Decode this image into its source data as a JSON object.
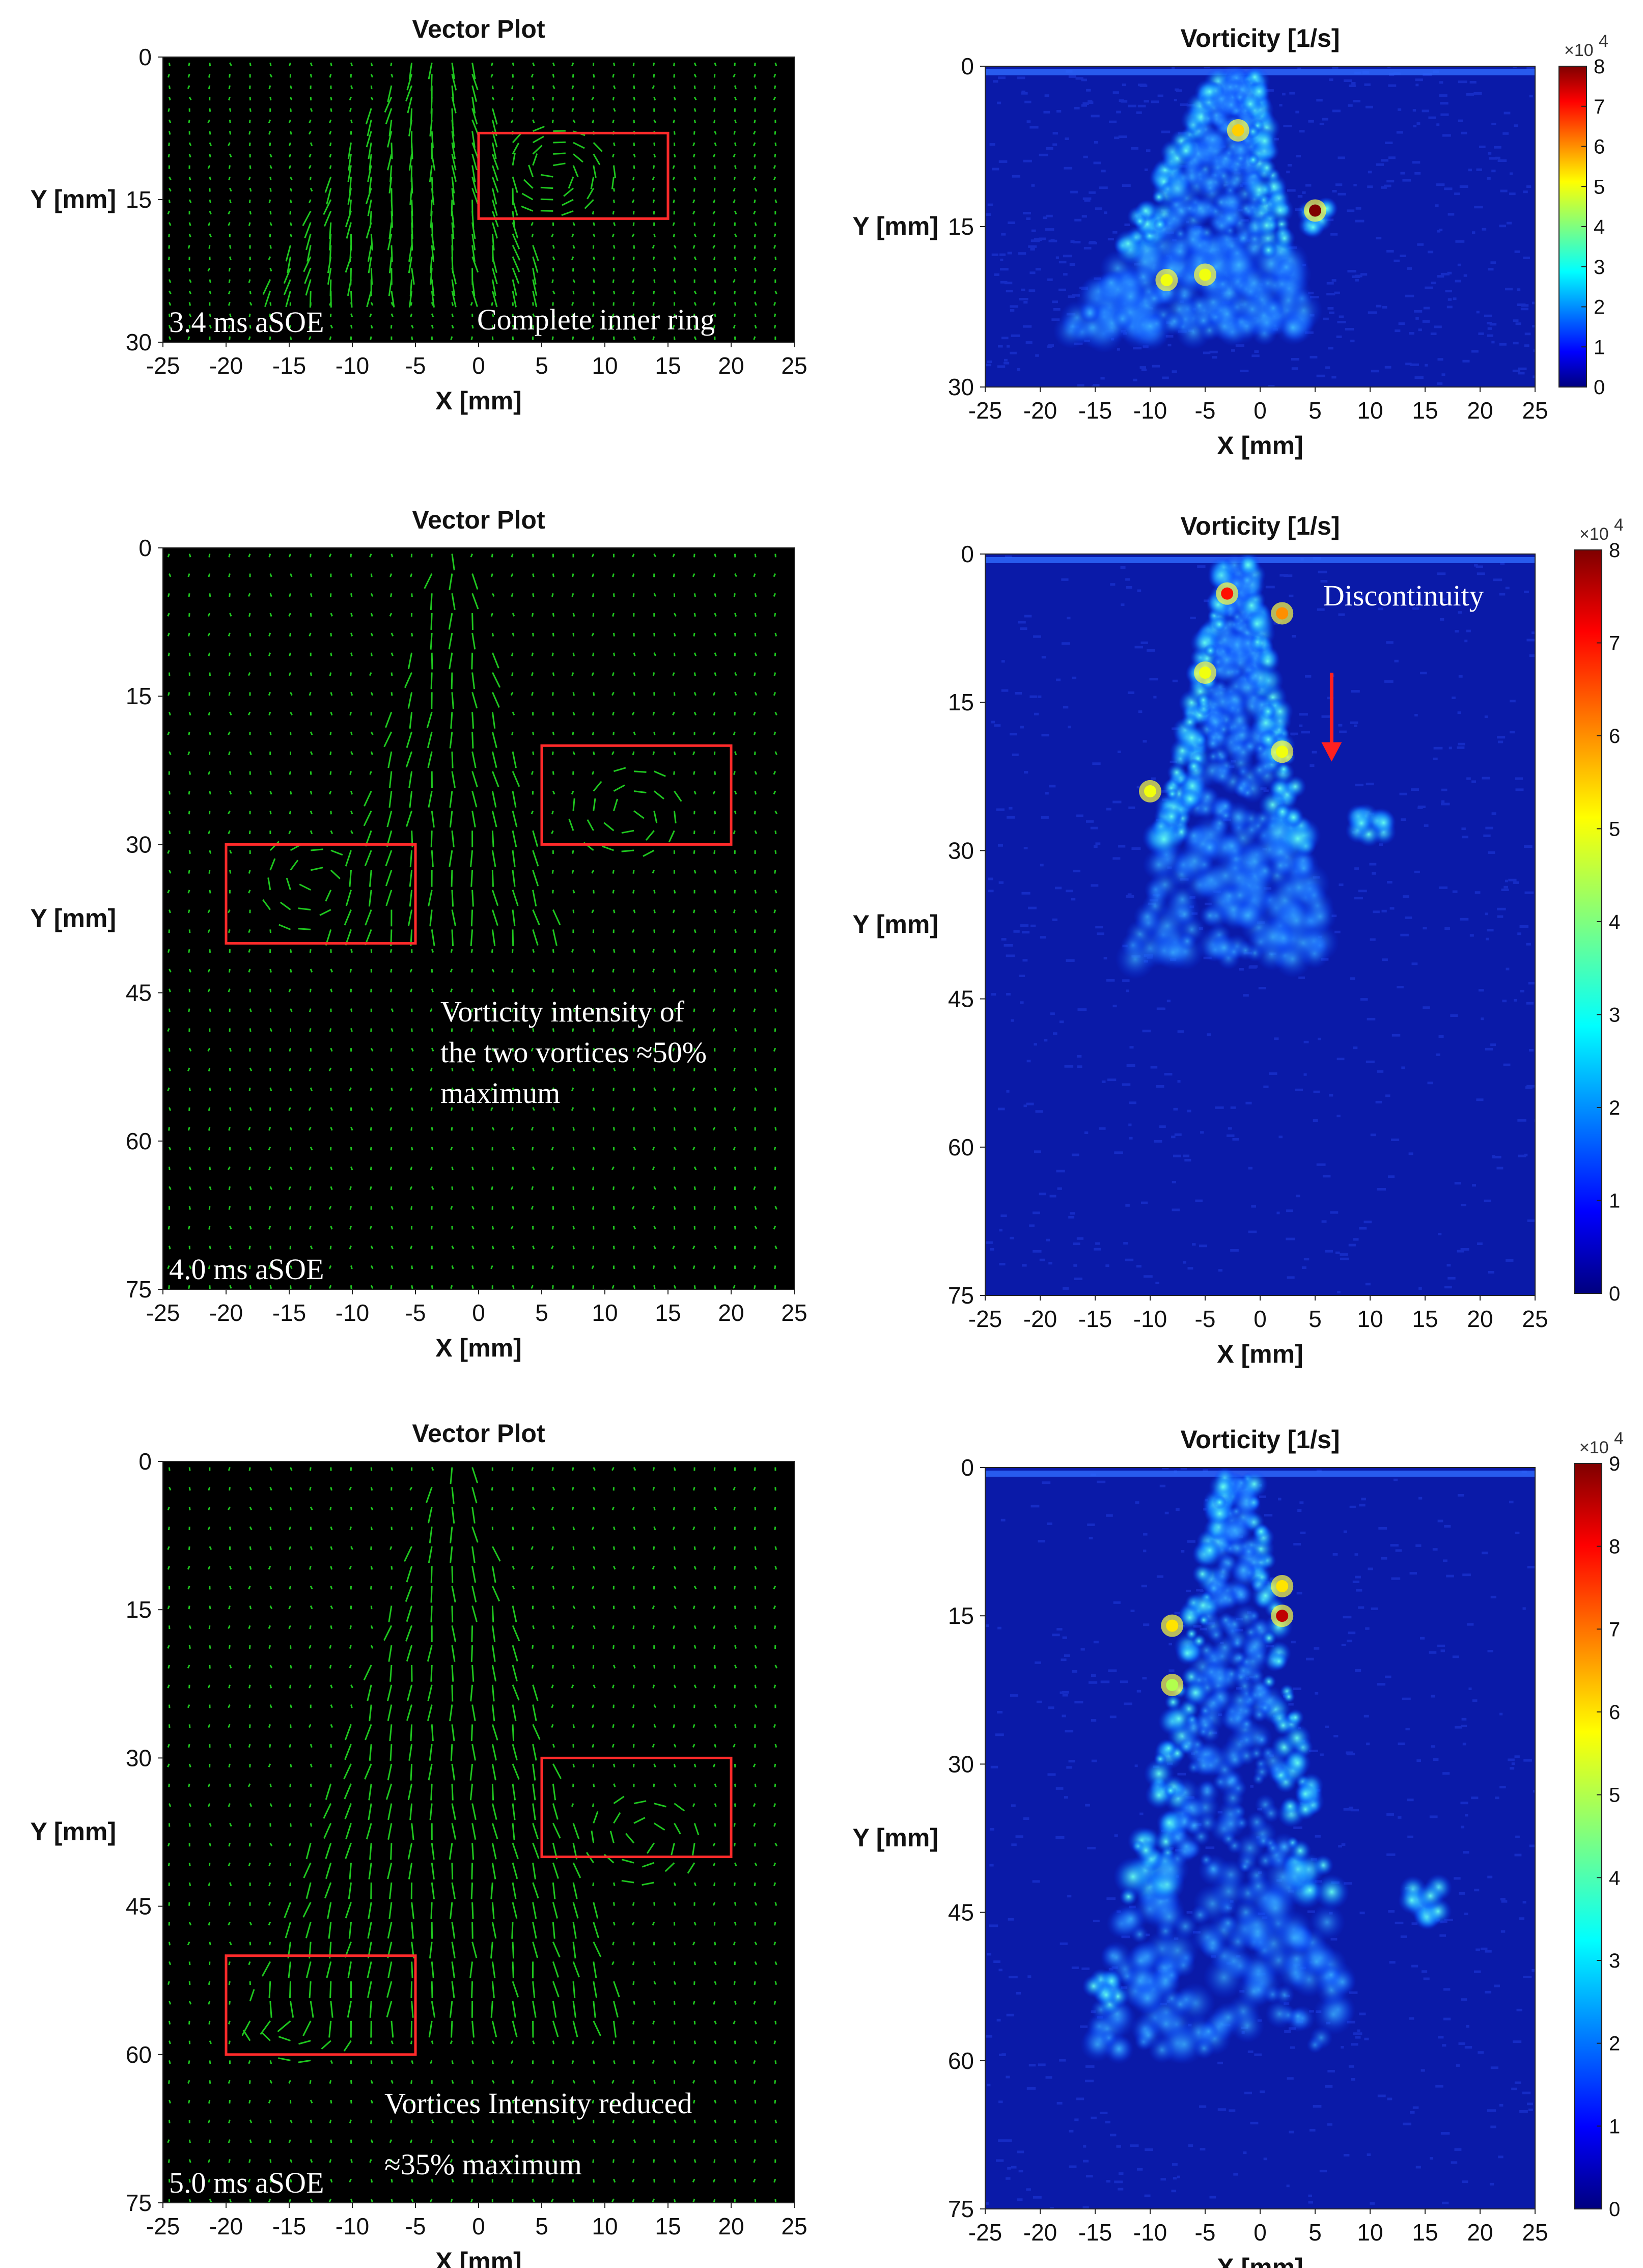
{
  "chart_data": [
    {
      "type": "quiver",
      "title": "Vector Plot",
      "xlabel": "X [mm]",
      "ylabel": "Y [mm]",
      "xlim": [
        -25,
        25
      ],
      "ylim": [
        0,
        30
      ],
      "x_ticks": [
        "-25",
        "-20",
        "-15",
        "-10",
        "-5",
        "0",
        "5",
        "10",
        "15",
        "20",
        "25"
      ],
      "y_ticks": [
        "0",
        "15",
        "30"
      ],
      "time_label": "3.4 ms aSOE",
      "annotation": [
        "Complete inner ring"
      ],
      "regions": [
        {
          "x": [
            0,
            15
          ],
          "y": [
            8,
            17
          ]
        }
      ],
      "vortices": [
        {
          "x": 6,
          "y": 12,
          "r": 5
        }
      ],
      "colors": {
        "background": "#000000",
        "vectors": "#22dd22",
        "regions": "#ff2a2a"
      }
    },
    {
      "type": "heatmap",
      "title": "Vorticity [1/s]",
      "xlabel": "X [mm]",
      "ylabel": "Y [mm]",
      "xlim": [
        -25,
        25
      ],
      "ylim": [
        0,
        30
      ],
      "x_ticks": [
        "-25",
        "-20",
        "-15",
        "-10",
        "-5",
        "0",
        "5",
        "10",
        "15",
        "20",
        "25"
      ],
      "y_ticks": [
        "0",
        "15",
        "30"
      ],
      "colorbar": {
        "ticks": [
          "0",
          "1",
          "2",
          "3",
          "4",
          "5",
          "6",
          "7",
          "8"
        ],
        "max": 8,
        "exponent_base": "×10",
        "exponent_power": "4"
      },
      "hot_spots": [
        {
          "x": 5,
          "y": 13.5,
          "value": 8
        },
        {
          "x": -8.5,
          "y": 20,
          "value": 5
        },
        {
          "x": -5,
          "y": 19.5,
          "value": 5
        },
        {
          "x": -2,
          "y": 6,
          "value": 5.5
        }
      ]
    },
    {
      "type": "quiver",
      "title": "Vector Plot",
      "xlabel": "X [mm]",
      "ylabel": "Y [mm]",
      "xlim": [
        -25,
        25
      ],
      "ylim": [
        0,
        75
      ],
      "x_ticks": [
        "-25",
        "-20",
        "-15",
        "-10",
        "-5",
        "0",
        "5",
        "10",
        "15",
        "20",
        "25"
      ],
      "y_ticks": [
        "0",
        "15",
        "30",
        "45",
        "60",
        "75"
      ],
      "time_label": "4.0 ms aSOE",
      "annotation": [
        "Vorticity  intensity  of",
        "the two vortices ≈50%",
        "maximum"
      ],
      "regions": [
        {
          "x": [
            5,
            20
          ],
          "y": [
            20,
            30
          ]
        },
        {
          "x": [
            -20,
            -5
          ],
          "y": [
            30,
            40
          ]
        }
      ],
      "vortices": [
        {
          "x": 12,
          "y": 27,
          "r": 5
        },
        {
          "x": -13,
          "y": 34,
          "r": 5
        }
      ],
      "colors": {
        "background": "#000000",
        "vectors": "#22dd22",
        "regions": "#ff2a2a"
      }
    },
    {
      "type": "heatmap",
      "title": "Vorticity [1/s]",
      "xlabel": "X [mm]",
      "ylabel": "Y [mm]",
      "xlim": [
        -25,
        25
      ],
      "ylim": [
        0,
        75
      ],
      "x_ticks": [
        "-25",
        "-20",
        "-15",
        "-10",
        "-5",
        "0",
        "5",
        "10",
        "15",
        "20",
        "25"
      ],
      "y_ticks": [
        "0",
        "15",
        "30",
        "45",
        "60",
        "75"
      ],
      "colorbar": {
        "ticks": [
          "0",
          "1",
          "2",
          "3",
          "4",
          "5",
          "6",
          "7",
          "8"
        ],
        "max": 8,
        "exponent_base": "×10",
        "exponent_power": "4"
      },
      "annotation": "Discontinuity",
      "arrow": {
        "x": 6.5,
        "y_from": 12,
        "y_to": 21
      },
      "hot_spots": [
        {
          "x": -3,
          "y": 4,
          "value": 7
        },
        {
          "x": 2,
          "y": 6,
          "value": 6
        },
        {
          "x": -5,
          "y": 12,
          "value": 5
        },
        {
          "x": 2,
          "y": 20,
          "value": 5
        },
        {
          "x": -10,
          "y": 24,
          "value": 5
        }
      ]
    },
    {
      "type": "quiver",
      "title": "Vector Plot",
      "xlabel": "X [mm]",
      "ylabel": "Y [mm]",
      "xlim": [
        -25,
        25
      ],
      "ylim": [
        0,
        75
      ],
      "x_ticks": [
        "-25",
        "-20",
        "-15",
        "-10",
        "-5",
        "0",
        "5",
        "10",
        "15",
        "20",
        "25"
      ],
      "y_ticks": [
        "0",
        "15",
        "30",
        "45",
        "60",
        "75"
      ],
      "time_label": "5.0 ms aSOE",
      "annotation": [
        "Vortices   Intensity   reduced",
        "≈35% maximum"
      ],
      "regions": [
        {
          "x": [
            5,
            20
          ],
          "y": [
            30,
            40
          ]
        },
        {
          "x": [
            -20,
            -5
          ],
          "y": [
            50,
            60
          ]
        }
      ],
      "vortices": [
        {
          "x": 13,
          "y": 38,
          "r": 5
        },
        {
          "x": -14,
          "y": 56,
          "r": 5
        }
      ],
      "colors": {
        "background": "#000000",
        "vectors": "#22dd22",
        "regions": "#ff2a2a"
      }
    },
    {
      "type": "heatmap",
      "title": "Vorticity [1/s]",
      "xlabel": "X [mm]",
      "ylabel": "Y [mm]",
      "xlim": [
        -25,
        25
      ],
      "ylim": [
        0,
        75
      ],
      "x_ticks": [
        "-25",
        "-20",
        "-15",
        "-10",
        "-5",
        "0",
        "5",
        "10",
        "15",
        "20",
        "25"
      ],
      "y_ticks": [
        "0",
        "15",
        "30",
        "45",
        "60",
        "75"
      ],
      "colorbar": {
        "ticks": [
          "0",
          "1",
          "2",
          "3",
          "4",
          "5",
          "6",
          "7",
          "8",
          "9"
        ],
        "max": 9,
        "exponent_base": "×10",
        "exponent_power": "4"
      },
      "hot_spots": [
        {
          "x": 2,
          "y": 15,
          "value": 8.5
        },
        {
          "x": -8,
          "y": 16,
          "value": 6
        },
        {
          "x": 2,
          "y": 12,
          "value": 6
        },
        {
          "x": -8,
          "y": 22,
          "value": 5
        }
      ]
    }
  ]
}
